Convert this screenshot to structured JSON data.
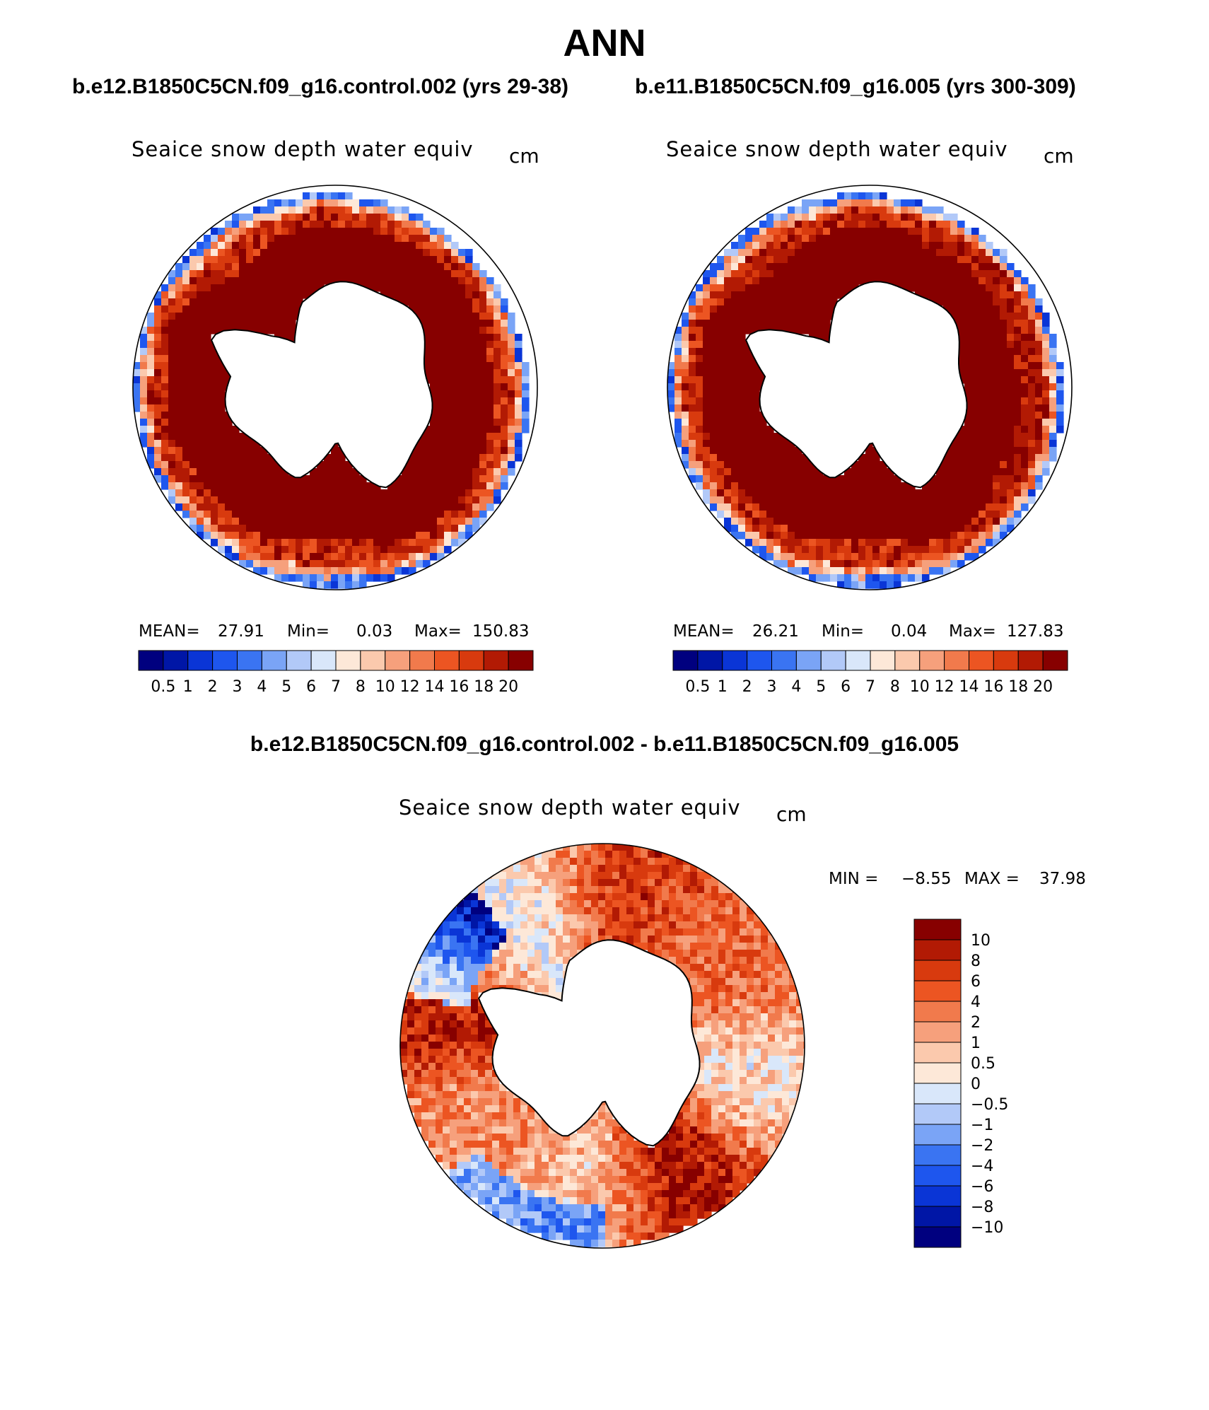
{
  "title": "ANN",
  "case1": "b.e12.B1850C5CN.f09_g16.control.002 (yrs 29-38)",
  "case2": "b.e11.B1850C5CN.f09_g16.005 (yrs 300-309)",
  "diff_title": "b.e12.B1850C5CN.f09_g16.control.002 - b.e11.B1850C5CN.f09_g16.005",
  "colors": {
    "land": "#ffffff",
    "outline": "#000000",
    "abs_palette": [
      "#00007f",
      "#0016a6",
      "#0a35d6",
      "#1e56ee",
      "#3a74f2",
      "#7aa4f6",
      "#b2c9f8",
      "#d9e7fa",
      "#fde8d8",
      "#fbc9ad",
      "#f6a07c",
      "#f17a4c",
      "#ec5522",
      "#d83a0e",
      "#b21a04",
      "#870000"
    ],
    "diff_palette": [
      "#00007f",
      "#0016a6",
      "#0a35d6",
      "#1e56ee",
      "#3a74f2",
      "#7aa4f6",
      "#b2c9f8",
      "#d9e7fa",
      "#fde8d8",
      "#fbc9ad",
      "#f6a07c",
      "#f17a4c",
      "#ec5522",
      "#d83a0e",
      "#b21a04",
      "#870000"
    ]
  },
  "chart_data": [
    {
      "type": "heatmap",
      "subtype": "polar-stereographic-map",
      "panel": "case1",
      "title": "Seaice snow depth water equiv",
      "units": "cm",
      "stats": {
        "mean_label": "MEAN=",
        "mean": "27.91",
        "min_label": "Min=",
        "min": "0.03",
        "max_label": "Max=",
        "max": "150.83"
      },
      "colorbar_levels": [
        "0.5",
        "1",
        "2",
        "3",
        "4",
        "5",
        "6",
        "7",
        "8",
        "10",
        "12",
        "14",
        "16",
        "18",
        "20"
      ],
      "ice_edge_profile": "case1"
    },
    {
      "type": "heatmap",
      "subtype": "polar-stereographic-map",
      "panel": "case2",
      "title": "Seaice snow depth water equiv",
      "units": "cm",
      "stats": {
        "mean_label": "MEAN=",
        "mean": "26.21",
        "min_label": "Min=",
        "min": "0.04",
        "max_label": "Max=",
        "max": "127.83"
      },
      "colorbar_levels": [
        "0.5",
        "1",
        "2",
        "3",
        "4",
        "5",
        "6",
        "7",
        "8",
        "10",
        "12",
        "14",
        "16",
        "18",
        "20"
      ],
      "ice_edge_profile": "case2"
    },
    {
      "type": "heatmap",
      "subtype": "polar-stereographic-map",
      "panel": "difference",
      "title": "Seaice snow depth water equiv",
      "units": "cm",
      "stats": {
        "min_label": "MIN =",
        "min": "−8.55",
        "max_label": "MAX =",
        "max": "37.98"
      },
      "colorbar_levels": [
        "10",
        "8",
        "6",
        "4",
        "2",
        "1",
        "0.5",
        "0",
        "−0.5",
        "−1",
        "−2",
        "−4",
        "−6",
        "−8",
        "−10"
      ]
    }
  ]
}
